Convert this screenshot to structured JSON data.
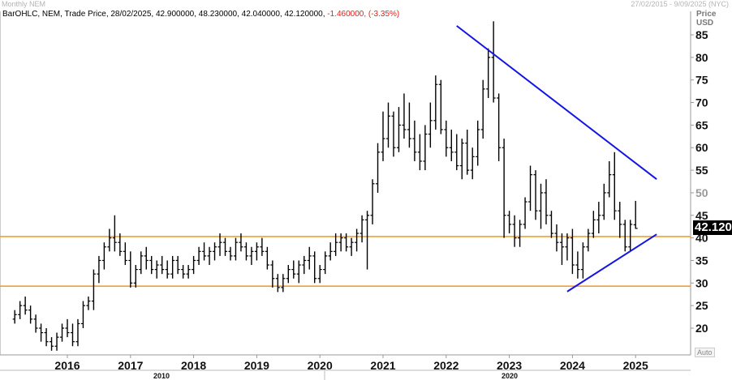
{
  "header": {
    "title_left": "Monthly NEM",
    "range_right": "27/02/2015 - 9/09/2025 (NYC)"
  },
  "legend": {
    "prefix": "BarOHLC, NEM, Trade Price, 28/02/2025, 42.900000, 48.230000, 42.040000, 42.120000,",
    "change": "-1.460000, (-3.35%)"
  },
  "axis": {
    "price_label": "Price",
    "currency_label": "USD",
    "auto_label": "Auto",
    "last_price": "42.120"
  },
  "chart_data": {
    "type": "bar",
    "subtype": "OHLC monthly",
    "ylim": [
      13,
      90
    ],
    "y_ticks": [
      20,
      25,
      30,
      35,
      40,
      45,
      50,
      55,
      60,
      65,
      70,
      75,
      80,
      85
    ],
    "x_ticks": [
      "2016",
      "2017",
      "2018",
      "2019",
      "2020",
      "2021",
      "2022",
      "2023",
      "2024",
      "2025"
    ],
    "x_subticks": [
      "2010",
      "2020"
    ],
    "grid": false,
    "horizontal_lines": [
      {
        "y": 40.3,
        "color": "#f0a030"
      },
      {
        "y": 29.3,
        "color": "#f0a030"
      }
    ],
    "trendlines": [
      {
        "from": [
          "2022-03",
          87.0
        ],
        "to": [
          "2025-05",
          53.0
        ],
        "color": "#1414e6"
      },
      {
        "from": [
          "2023-12",
          28.1
        ],
        "to": [
          "2025-05",
          40.8
        ],
        "color": "#1414e6"
      }
    ],
    "bars_note": "approximate monthly OHLC values read from chart, starting 2015-03",
    "start": "2015-03",
    "ohlc": [
      [
        22,
        24,
        21,
        23
      ],
      [
        23,
        26,
        22,
        25
      ],
      [
        25,
        27,
        23,
        24
      ],
      [
        24,
        25,
        21,
        22
      ],
      [
        22,
        23,
        19,
        20
      ],
      [
        20,
        21,
        17,
        19
      ],
      [
        19,
        20,
        16,
        17
      ],
      [
        17,
        18,
        15,
        16
      ],
      [
        16,
        19,
        15,
        18
      ],
      [
        18,
        21,
        17,
        20
      ],
      [
        20,
        22,
        18,
        19
      ],
      [
        19,
        21,
        16,
        17
      ],
      [
        17,
        22,
        16,
        21
      ],
      [
        21,
        26,
        20,
        25
      ],
      [
        25,
        27,
        24,
        26
      ],
      [
        26,
        33,
        24,
        32
      ],
      [
        32,
        36,
        30,
        35
      ],
      [
        35,
        39,
        33,
        38
      ],
      [
        38,
        42,
        37,
        40
      ],
      [
        40,
        45,
        37,
        39
      ],
      [
        39,
        41,
        36,
        37
      ],
      [
        37,
        39,
        34,
        35
      ],
      [
        35,
        37,
        29,
        30
      ],
      [
        30,
        34,
        29,
        33
      ],
      [
        33,
        37,
        32,
        36
      ],
      [
        36,
        38,
        33,
        35
      ],
      [
        35,
        36,
        32,
        33
      ],
      [
        33,
        35,
        31,
        34
      ],
      [
        34,
        36,
        32,
        33
      ],
      [
        33,
        35,
        31,
        32
      ],
      [
        32,
        36,
        31,
        35
      ],
      [
        35,
        36,
        32,
        33
      ],
      [
        33,
        34,
        31,
        32
      ],
      [
        32,
        34,
        31,
        33
      ],
      [
        33,
        36,
        32,
        35
      ],
      [
        35,
        38,
        34,
        37
      ],
      [
        37,
        39,
        35,
        36
      ],
      [
        36,
        38,
        34,
        37
      ],
      [
        37,
        39,
        35,
        38
      ],
      [
        38,
        41,
        36,
        39
      ],
      [
        39,
        40,
        36,
        37
      ],
      [
        37,
        38,
        35,
        36
      ],
      [
        36,
        40,
        35,
        39
      ],
      [
        39,
        41,
        37,
        38
      ],
      [
        38,
        39,
        35,
        36
      ],
      [
        36,
        38,
        34,
        37
      ],
      [
        37,
        39,
        35,
        38
      ],
      [
        38,
        40,
        36,
        37
      ],
      [
        37,
        38,
        33,
        34
      ],
      [
        34,
        35,
        29,
        31
      ],
      [
        31,
        32,
        28,
        29
      ],
      [
        29,
        32,
        28,
        31
      ],
      [
        31,
        34,
        30,
        33
      ],
      [
        33,
        35,
        31,
        32
      ],
      [
        32,
        35,
        30,
        34
      ],
      [
        34,
        36,
        32,
        35
      ],
      [
        35,
        38,
        33,
        36
      ],
      [
        36,
        37,
        30,
        31
      ],
      [
        31,
        34,
        30,
        33
      ],
      [
        33,
        37,
        32,
        36
      ],
      [
        36,
        39,
        35,
        37
      ],
      [
        37,
        41,
        36,
        39
      ],
      [
        39,
        41,
        37,
        40
      ],
      [
        40,
        41,
        37,
        38
      ],
      [
        38,
        40,
        36,
        39
      ],
      [
        39,
        42,
        37,
        41
      ],
      [
        41,
        45,
        39,
        44
      ],
      [
        44,
        46,
        33,
        45
      ],
      [
        45,
        53,
        43,
        52
      ],
      [
        52,
        61,
        50,
        59
      ],
      [
        59,
        68,
        57,
        62
      ],
      [
        62,
        70,
        60,
        67
      ],
      [
        67,
        68,
        58,
        60
      ],
      [
        60,
        69,
        59,
        65
      ],
      [
        65,
        72,
        62,
        64
      ],
      [
        64,
        70,
        60,
        62
      ],
      [
        62,
        66,
        57,
        59
      ],
      [
        59,
        63,
        55,
        57
      ],
      [
        57,
        65,
        55,
        63
      ],
      [
        63,
        70,
        60,
        66
      ],
      [
        66,
        76,
        64,
        74
      ],
      [
        74,
        75,
        63,
        64
      ],
      [
        64,
        66,
        58,
        60
      ],
      [
        60,
        64,
        57,
        59
      ],
      [
        59,
        63,
        55,
        56
      ],
      [
        56,
        62,
        53,
        61
      ],
      [
        61,
        64,
        54,
        55
      ],
      [
        55,
        60,
        53,
        58
      ],
      [
        58,
        66,
        56,
        64
      ],
      [
        64,
        75,
        62,
        73
      ],
      [
        73,
        82,
        71,
        80
      ],
      [
        80,
        88,
        70,
        71
      ],
      [
        71,
        72,
        57,
        60
      ],
      [
        60,
        62,
        40,
        45
      ],
      [
        45,
        46,
        41,
        43
      ],
      [
        43,
        45,
        38,
        40
      ],
      [
        40,
        44,
        38,
        43
      ],
      [
        43,
        49,
        42,
        48
      ],
      [
        48,
        56,
        46,
        54
      ],
      [
        54,
        55,
        44,
        46
      ],
      [
        46,
        52,
        42,
        50
      ],
      [
        50,
        53,
        43,
        45
      ],
      [
        45,
        46,
        40,
        41
      ],
      [
        41,
        43,
        37,
        39
      ],
      [
        39,
        41,
        34,
        38
      ],
      [
        38,
        41,
        35,
        40
      ],
      [
        40,
        42,
        32,
        34
      ],
      [
        34,
        37,
        31,
        33
      ],
      [
        33,
        39,
        31,
        38
      ],
      [
        38,
        42,
        37,
        41
      ],
      [
        41,
        46,
        40,
        44
      ],
      [
        44,
        48,
        41,
        45
      ],
      [
        45,
        52,
        44,
        50
      ],
      [
        50,
        57,
        49,
        54
      ],
      [
        54,
        59,
        44,
        46
      ],
      [
        46,
        48,
        40,
        43
      ],
      [
        43,
        44,
        37,
        38
      ],
      [
        38,
        44,
        37,
        43
      ],
      [
        42.9,
        48.2,
        42.0,
        42.1
      ]
    ]
  }
}
